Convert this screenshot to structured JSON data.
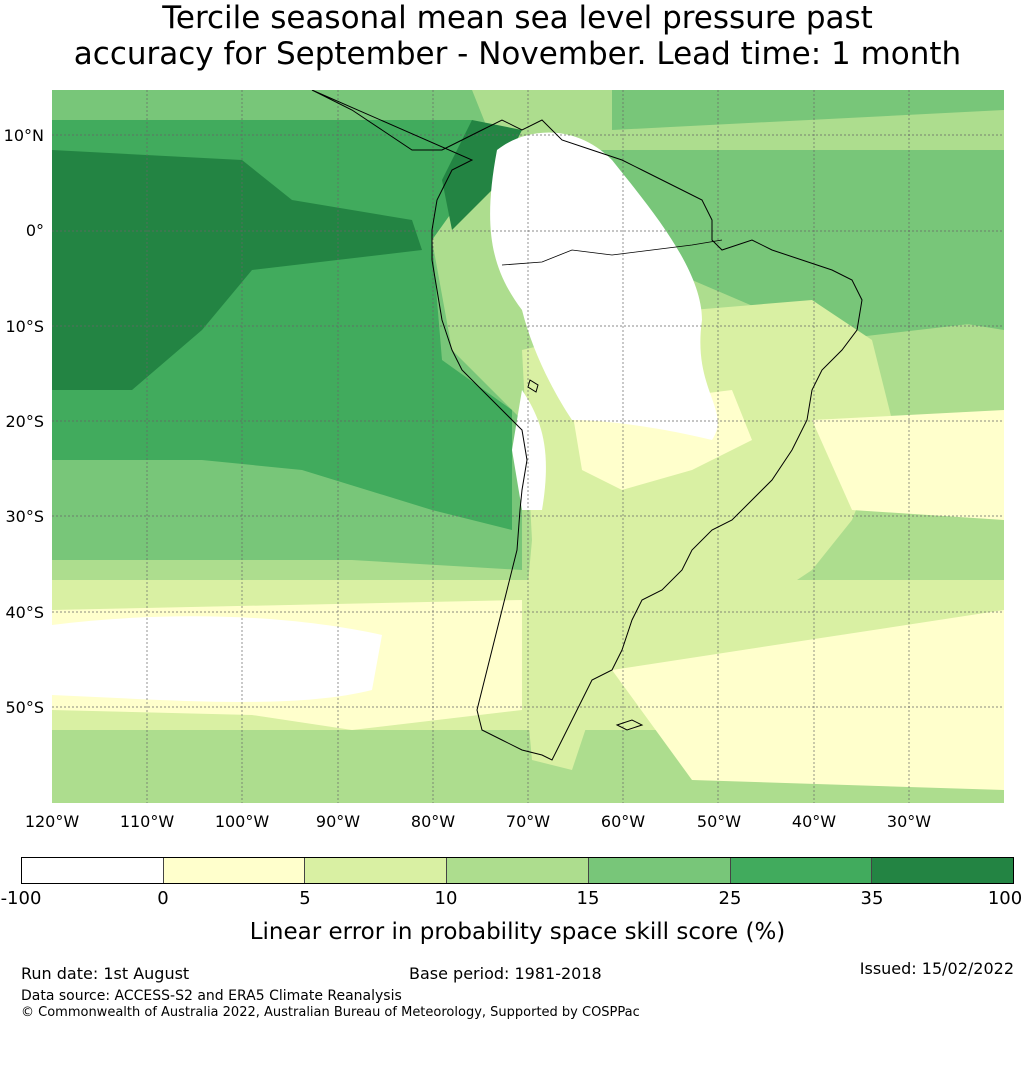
{
  "title_line1": "Tercile seasonal mean sea level pressure past",
  "title_line2": "accuracy for September - November. Lead time: 1 month",
  "map": {
    "region": "South America and adjacent Pacific / Atlantic",
    "lat_labels": [
      "10°N",
      "0°",
      "10°S",
      "20°S",
      "30°S",
      "40°S",
      "50°S"
    ],
    "lon_labels": [
      "120°W",
      "110°W",
      "100°W",
      "90°W",
      "80°W",
      "70°W",
      "60°W",
      "50°W",
      "40°W",
      "30°W"
    ],
    "coastline_color": "#000000",
    "gridline_color": "#666666"
  },
  "colorbar": {
    "ticks": [
      "-100",
      "0",
      "5",
      "10",
      "15",
      "25",
      "35",
      "100"
    ],
    "colors": [
      "#ffffff",
      "#ffffcc",
      "#d9f0a3",
      "#addd8e",
      "#78c679",
      "#41ab5d",
      "#238443"
    ],
    "label": "Linear error in probability space skill score (%)"
  },
  "footer": {
    "run_date": "Run date: 1st August",
    "base_period": "Base period: 1981-2018",
    "issued": "Issued: 15/02/2022",
    "data_source": "Data source: ACCESS-S2 and ERA5 Climate Reanalysis",
    "copyright": "© Commonwealth of Australia 2022, Australian Bureau of Meteorology, Supported by COSPPac"
  }
}
